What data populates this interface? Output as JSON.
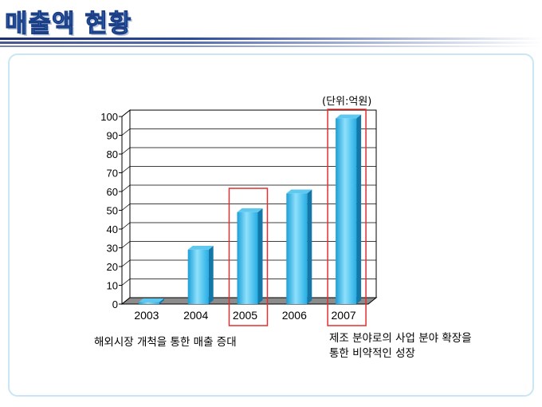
{
  "page": {
    "title": "매출액 현황"
  },
  "chart_data": {
    "type": "bar",
    "categories": [
      "2003",
      "2004",
      "2005",
      "2006",
      "2007"
    ],
    "values": [
      1,
      29,
      49,
      59,
      99
    ],
    "ylim": [
      0,
      100
    ],
    "yticks": [
      0,
      10,
      20,
      30,
      40,
      50,
      60,
      70,
      80,
      90,
      100
    ],
    "grid": true,
    "unit_label": "(단위:억원)",
    "highlighted": [
      "2005",
      "2007"
    ],
    "bar_color": "#2fb6ec",
    "highlight_color": "#e03030"
  },
  "annotations": {
    "left": "해외시장 개척을 통한 매출 증대",
    "right_line1": "제조 분야로의 사업 분야 확장을",
    "right_line2": "통한 비약적인 성장"
  }
}
